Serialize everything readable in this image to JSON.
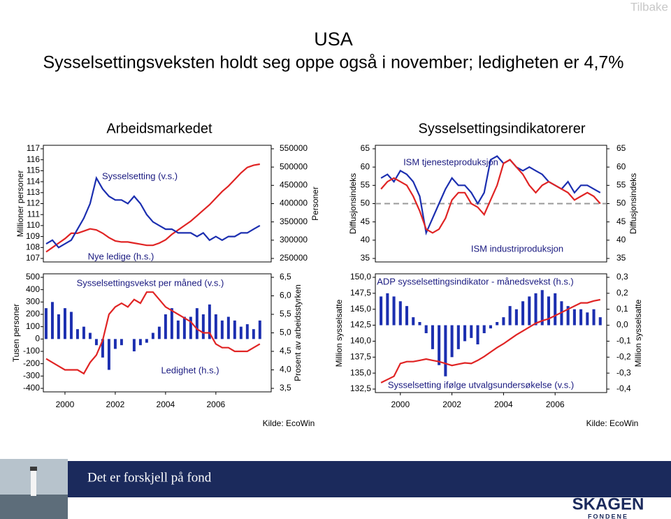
{
  "nav": {
    "back": "Tilbake"
  },
  "header": {
    "title": "USA",
    "subtitle": "Sysselsettingsveksten holdt seg oppe også i november; ledigheten er 4,7%"
  },
  "chart_data": [
    {
      "type": "line",
      "title": "Arbeidsmarkedet",
      "y_label": "Millioner personer",
      "y2_label": "Personer",
      "xlim": [
        1999.14,
        2008.2
      ],
      "ylim": [
        107,
        117
      ],
      "yticks": [
        107,
        108,
        109,
        110,
        111,
        112,
        113,
        114,
        115,
        116,
        117
      ],
      "y2lim": [
        250000,
        550000
      ],
      "y2ticks": [
        250000,
        300000,
        350000,
        400000,
        450000,
        500000,
        550000
      ],
      "x": [
        1999.25,
        1999.5,
        1999.75,
        2000,
        2000.25,
        2000.5,
        2000.75,
        2001,
        2001.25,
        2001.5,
        2001.75,
        2002,
        2002.25,
        2002.5,
        2002.75,
        2003,
        2003.25,
        2003.5,
        2003.75,
        2004,
        2004.25,
        2004.5,
        2004.75,
        2005,
        2005.25,
        2005.5,
        2005.75,
        2006,
        2006.25,
        2006.5,
        2006.75,
        2007,
        2007.25,
        2007.5,
        2007.75
      ],
      "series": [
        {
          "name": "Sysselsetting (v.s.)",
          "type": "line",
          "axis": "y",
          "color": "#e02424",
          "values": [
            107.6,
            108,
            108.4,
            108.8,
            109.3,
            109.3,
            109.5,
            109.7,
            109.6,
            109.3,
            108.9,
            108.6,
            108.5,
            108.5,
            108.4,
            108.3,
            108.2,
            108.2,
            108.4,
            108.7,
            109.2,
            109.6,
            110,
            110.4,
            110.9,
            111.4,
            111.9,
            112.5,
            113.1,
            113.6,
            114.2,
            114.8,
            115.3,
            115.5,
            115.6
          ]
        },
        {
          "name": "Nye ledige (h.s.)",
          "type": "line",
          "axis": "y2",
          "color": "#1c2fb0",
          "values": [
            290000,
            300000,
            280000,
            290000,
            300000,
            330000,
            360000,
            400000,
            470000,
            440000,
            420000,
            410000,
            410000,
            400000,
            420000,
            400000,
            370000,
            350000,
            340000,
            330000,
            330000,
            320000,
            320000,
            320000,
            310000,
            320000,
            300000,
            310000,
            300000,
            310000,
            310000,
            320000,
            320000,
            330000,
            340000
          ]
        }
      ]
    },
    {
      "type": "line",
      "title": "Sysselsettingsindikatorerer",
      "y_label": "Diffusjonsindeks",
      "y2_label": "Diffusjonsindeks",
      "xlim": [
        1999.03,
        2008
      ],
      "ylim": [
        35,
        65
      ],
      "yticks": [
        35,
        40,
        45,
        50,
        55,
        60,
        65
      ],
      "y2lim": [
        35,
        65
      ],
      "y2ticks": [
        35,
        40,
        45,
        50,
        55,
        60,
        65
      ],
      "reference_line": 50,
      "x": [
        1999.25,
        1999.5,
        1999.75,
        2000,
        2000.25,
        2000.5,
        2000.75,
        2001,
        2001.25,
        2001.5,
        2001.75,
        2002,
        2002.25,
        2002.5,
        2002.75,
        2003,
        2003.25,
        2003.5,
        2003.75,
        2004,
        2004.25,
        2004.5,
        2004.75,
        2005,
        2005.25,
        2005.5,
        2005.75,
        2006,
        2006.25,
        2006.5,
        2006.75,
        2007,
        2007.25,
        2007.5,
        2007.75
      ],
      "series": [
        {
          "name": "ISM tjenesteproduksjon",
          "type": "line",
          "axis": "y",
          "color": "#1c2fb0",
          "values": [
            57,
            58,
            56,
            59,
            58,
            56,
            52,
            42,
            46,
            50,
            54,
            57,
            55,
            55,
            53,
            50,
            53,
            62,
            63,
            61,
            62,
            60,
            59,
            60,
            59,
            58,
            56,
            55,
            54,
            56,
            53,
            55,
            55,
            54,
            53
          ]
        },
        {
          "name": "ISM industriproduksjon",
          "type": "line",
          "axis": "y",
          "color": "#e02424",
          "values": [
            54,
            56,
            57,
            56,
            55,
            52,
            48,
            43,
            42,
            43,
            46,
            51,
            53,
            53,
            50,
            49,
            47,
            51,
            55,
            61,
            62,
            60,
            58,
            55,
            53,
            55,
            56,
            55,
            54,
            53,
            51,
            52,
            53,
            52,
            50
          ]
        }
      ]
    },
    {
      "type": "combo",
      "y_label": "Tusen personer",
      "y2_label": "Prosent av arbeidsstyrken",
      "source": "Kilde: EcoWin",
      "xlim": [
        1999.14,
        2008.2
      ],
      "xticks": [
        2000,
        2002,
        2004,
        2006
      ],
      "ylim": [
        -400,
        500
      ],
      "yticks": [
        -400,
        -300,
        -200,
        -100,
        0,
        100,
        200,
        300,
        400,
        500
      ],
      "y2lim": [
        3.5,
        6.5
      ],
      "y2ticks": [
        {
          "value": 3.5,
          "label": "3,5"
        },
        {
          "value": 4,
          "label": "4,0"
        },
        {
          "value": 4.5,
          "label": "4,5"
        },
        {
          "value": 5,
          "label": "5,0"
        },
        {
          "value": 5.5,
          "label": "5,5"
        },
        {
          "value": 6,
          "label": "6,0"
        },
        {
          "value": 6.5,
          "label": "6,5"
        }
      ],
      "x": [
        1999.25,
        1999.5,
        1999.75,
        2000,
        2000.25,
        2000.5,
        2000.75,
        2001,
        2001.25,
        2001.5,
        2001.75,
        2002,
        2002.25,
        2002.5,
        2002.75,
        2003,
        2003.25,
        2003.5,
        2003.75,
        2004,
        2004.25,
        2004.5,
        2004.75,
        2005,
        2005.25,
        2005.5,
        2005.75,
        2006,
        2006.25,
        2006.5,
        2006.75,
        2007,
        2007.25,
        2007.5,
        2007.75
      ],
      "series": [
        {
          "name": "Sysselsettingsvekst per måned (v.s.)",
          "type": "bar",
          "axis": "y",
          "color": "#1c2fb0",
          "values": [
            250,
            300,
            200,
            250,
            220,
            80,
            100,
            50,
            -50,
            -150,
            -250,
            -80,
            -50,
            0,
            -100,
            -50,
            -30,
            50,
            100,
            200,
            250,
            150,
            180,
            180,
            250,
            200,
            280,
            200,
            150,
            180,
            150,
            100,
            120,
            80,
            150
          ]
        },
        {
          "name": "Ledighet (h.s.)",
          "type": "line",
          "axis": "y2",
          "color": "#e02424",
          "values": [
            4.3,
            4.2,
            4.1,
            4,
            4,
            4,
            3.9,
            4.2,
            4.4,
            4.8,
            5.5,
            5.7,
            5.8,
            5.7,
            5.9,
            5.8,
            6.1,
            6.1,
            5.9,
            5.7,
            5.6,
            5.5,
            5.4,
            5.3,
            5.1,
            5,
            5,
            4.7,
            4.6,
            4.6,
            4.5,
            4.5,
            4.5,
            4.6,
            4.7
          ]
        }
      ]
    },
    {
      "type": "combo",
      "y_label": "Million sysselsatte",
      "y2_label": "Million sysselsatte",
      "source": "Kilde: EcoWin",
      "xlim": [
        1999.03,
        2008
      ],
      "xticks": [
        2000,
        2002,
        2004,
        2006
      ],
      "ylim": [
        132.5,
        150
      ],
      "yticks": [
        {
          "value": 132.5,
          "label": "132,5"
        },
        {
          "value": 135,
          "label": "135,0"
        },
        {
          "value": 137.5,
          "label": "137,5"
        },
        {
          "value": 140,
          "label": "140,0"
        },
        {
          "value": 142.5,
          "label": "142,5"
        },
        {
          "value": 145,
          "label": "145,0"
        },
        {
          "value": 147.5,
          "label": "147,5"
        },
        {
          "value": 150,
          "label": "150,0"
        }
      ],
      "y2lim": [
        -0.4,
        0.3
      ],
      "y2ticks": [
        {
          "value": -0.4,
          "label": "-0,4"
        },
        {
          "value": -0.3,
          "label": "-0,3"
        },
        {
          "value": -0.2,
          "label": "-0,2"
        },
        {
          "value": -0.1,
          "label": "-0,1"
        },
        {
          "value": 0,
          "label": "0,0"
        },
        {
          "value": 0.1,
          "label": "0,1"
        },
        {
          "value": 0.2,
          "label": "0,2"
        },
        {
          "value": 0.3,
          "label": "0,3"
        }
      ],
      "x": [
        1999.25,
        1999.5,
        1999.75,
        2000,
        2000.25,
        2000.5,
        2000.75,
        2001,
        2001.25,
        2001.5,
        2001.75,
        2002,
        2002.25,
        2002.5,
        2002.75,
        2003,
        2003.25,
        2003.5,
        2003.75,
        2004,
        2004.25,
        2004.5,
        2004.75,
        2005,
        2005.25,
        2005.5,
        2005.75,
        2006,
        2006.25,
        2006.5,
        2006.75,
        2007,
        2007.25,
        2007.5,
        2007.75
      ],
      "series": [
        {
          "name": "ADP sysselsettingsindikator - månedsvekst (h.s.)",
          "type": "bar",
          "axis": "y2",
          "color": "#1c2fb0",
          "values": [
            0.18,
            0.2,
            0.18,
            0.15,
            0.12,
            0.05,
            0.02,
            -0.05,
            -0.15,
            -0.25,
            -0.32,
            -0.2,
            -0.15,
            -0.1,
            -0.08,
            -0.12,
            -0.05,
            -0.02,
            0.02,
            0.05,
            0.12,
            0.1,
            0.15,
            0.18,
            0.2,
            0.22,
            0.18,
            0.2,
            0.15,
            0.12,
            0.1,
            0.1,
            0.08,
            0.1,
            0.05
          ]
        },
        {
          "name": "Sysselsetting ifølge utvalgsundersøkelse (v.s.)",
          "type": "line",
          "axis": "y",
          "color": "#e02424",
          "values": [
            133.5,
            134,
            134.5,
            136.5,
            136.8,
            136.8,
            137,
            137.2,
            137,
            136.8,
            136.5,
            136.2,
            136.4,
            136.6,
            136.5,
            137,
            137.6,
            138.3,
            139,
            139.6,
            140.3,
            141,
            141.6,
            142.2,
            142.8,
            143.2,
            143.5,
            144,
            144.5,
            145,
            145.5,
            146,
            146,
            146.3,
            146.5
          ]
        }
      ]
    }
  ],
  "footer": {
    "slogan": "Det er forskjell på fond",
    "logo": "SKAGEN",
    "logo_sub": "FONDENE"
  }
}
